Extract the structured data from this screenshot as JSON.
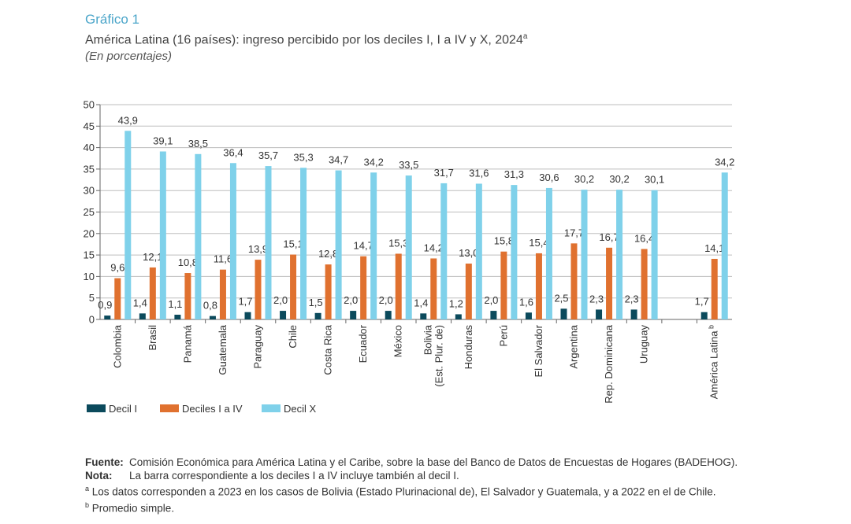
{
  "header": {
    "figure_label": "Gráfico 1",
    "title": "América Latina (16 países): ingreso percibido por los deciles I, I a IV y X, 2024",
    "title_sup": "a",
    "subtitle": "(En porcentajes)"
  },
  "chart_data": {
    "type": "bar",
    "ylim": [
      0,
      50
    ],
    "yticks": [
      0,
      5,
      10,
      15,
      20,
      25,
      30,
      35,
      40,
      45,
      50
    ],
    "grid": true,
    "legend_position": "bottom-left",
    "categories": [
      "Colombia",
      "Brasil",
      "Panamá",
      "Guatemala",
      "Paraguay",
      "Chile",
      "Costa Rica",
      "Ecuador",
      "México",
      "Bolivia (Est. Plur. de)",
      "Honduras",
      "Perú",
      "El Salvador",
      "Argentina",
      "Rep. Dominicana",
      "Uruguay",
      "",
      "América Latina"
    ],
    "category_lines": [
      [
        "Colombia"
      ],
      [
        "Brasil"
      ],
      [
        "Panamá"
      ],
      [
        "Guatemala"
      ],
      [
        "Paraguay"
      ],
      [
        "Chile"
      ],
      [
        "Costa Rica"
      ],
      [
        "Ecuador"
      ],
      [
        "México"
      ],
      [
        "Bolivia",
        "(Est. Plur. de)"
      ],
      [
        "Honduras"
      ],
      [
        "Perú"
      ],
      [
        "El Salvador"
      ],
      [
        "Argentina"
      ],
      [
        "Rep. Dominicana"
      ],
      [
        "Uruguay"
      ],
      [],
      [
        "América Latina"
      ]
    ],
    "category_superscripts": [
      "",
      "",
      "",
      "",
      "",
      "",
      "",
      "",
      "",
      "",
      "",
      "",
      "",
      "",
      "",
      "",
      "",
      "b"
    ],
    "series": [
      {
        "name": "Decil I",
        "color": "#0b4a5c",
        "values": [
          0.9,
          1.4,
          1.1,
          0.8,
          1.7,
          2.0,
          1.5,
          2.0,
          2.0,
          1.4,
          1.2,
          2.0,
          1.6,
          2.5,
          2.3,
          2.3,
          null,
          1.7
        ],
        "labels": [
          "0,9",
          "1,4",
          "1,1",
          "0,8",
          "1,7",
          "2,0",
          "1,5",
          "2,0",
          "2,0",
          "1,4",
          "1,2",
          "2,0",
          "1,6",
          "2,5",
          "2,3",
          "2,3",
          "",
          "1,7"
        ]
      },
      {
        "name": "Deciles I a IV",
        "color": "#e0712f",
        "values": [
          9.6,
          12.1,
          10.8,
          11.6,
          13.9,
          15.1,
          12.8,
          14.7,
          15.3,
          14.2,
          13.0,
          15.8,
          15.4,
          17.7,
          16.7,
          16.4,
          null,
          14.1
        ],
        "labels": [
          "9,6",
          "12,1",
          "10,8",
          "11,6",
          "13,9",
          "15,1",
          "12,8",
          "14,7",
          "15,3",
          "14,2",
          "13,0",
          "15,8",
          "15,4",
          "17,7",
          "16,7",
          "16,4",
          "",
          "14,1"
        ]
      },
      {
        "name": "Decil X",
        "color": "#7fd1ea",
        "values": [
          43.9,
          39.1,
          38.5,
          36.4,
          35.7,
          35.3,
          34.7,
          34.2,
          33.5,
          31.7,
          31.6,
          31.3,
          30.6,
          30.2,
          30.2,
          30.1,
          null,
          34.2
        ],
        "labels": [
          "43,9",
          "39,1",
          "38,5",
          "36,4",
          "35,7",
          "35,3",
          "34,7",
          "34,2",
          "33,5",
          "31,7",
          "31,6",
          "31,3",
          "30,6",
          "30,2",
          "30,2",
          "30,1",
          "",
          "34,2"
        ]
      }
    ]
  },
  "notes": {
    "source_label": "Fuente",
    "source_text": "Comisión Económica para América Latina y el Caribe, sobre la base del Banco de Datos de Encuestas de Hogares (BADEHOG).",
    "note_label": "Nota",
    "note_text": "La barra correspondiente a los deciles I a IV incluye también al decil I.",
    "footnote_a_mark": "a",
    "footnote_a": "Los datos corresponden a 2023 en los casos de Bolivia (Estado Plurinacional de), El Salvador y Guatemala, y a 2022 en el de Chile.",
    "footnote_b_mark": "b",
    "footnote_b": "Promedio simple."
  }
}
